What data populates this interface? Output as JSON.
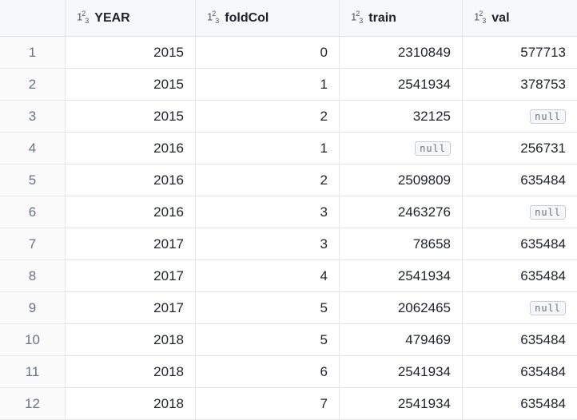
{
  "columns": [
    {
      "label": "YEAR",
      "type_icon": "123-numeric-type-icon"
    },
    {
      "label": "foldCol",
      "type_icon": "123-numeric-type-icon"
    },
    {
      "label": "train",
      "type_icon": "123-numeric-type-icon"
    },
    {
      "label": "val",
      "type_icon": "123-numeric-type-icon"
    }
  ],
  "null_label": "null",
  "rows": [
    {
      "index": "1",
      "year": "2015",
      "foldCol": "0",
      "train": "2310849",
      "val": "577713"
    },
    {
      "index": "2",
      "year": "2015",
      "foldCol": "1",
      "train": "2541934",
      "val": "378753"
    },
    {
      "index": "3",
      "year": "2015",
      "foldCol": "2",
      "train": "32125",
      "val": null
    },
    {
      "index": "4",
      "year": "2016",
      "foldCol": "1",
      "train": null,
      "val": "256731"
    },
    {
      "index": "5",
      "year": "2016",
      "foldCol": "2",
      "train": "2509809",
      "val": "635484"
    },
    {
      "index": "6",
      "year": "2016",
      "foldCol": "3",
      "train": "2463276",
      "val": null
    },
    {
      "index": "7",
      "year": "2017",
      "foldCol": "3",
      "train": "78658",
      "val": "635484"
    },
    {
      "index": "8",
      "year": "2017",
      "foldCol": "4",
      "train": "2541934",
      "val": "635484"
    },
    {
      "index": "9",
      "year": "2017",
      "foldCol": "5",
      "train": "2062465",
      "val": null
    },
    {
      "index": "10",
      "year": "2018",
      "foldCol": "5",
      "train": "479469",
      "val": "635484"
    },
    {
      "index": "11",
      "year": "2018",
      "foldCol": "6",
      "train": "2541934",
      "val": "635484"
    },
    {
      "index": "12",
      "year": "2018",
      "foldCol": "7",
      "train": "2541934",
      "val": "635484"
    }
  ]
}
